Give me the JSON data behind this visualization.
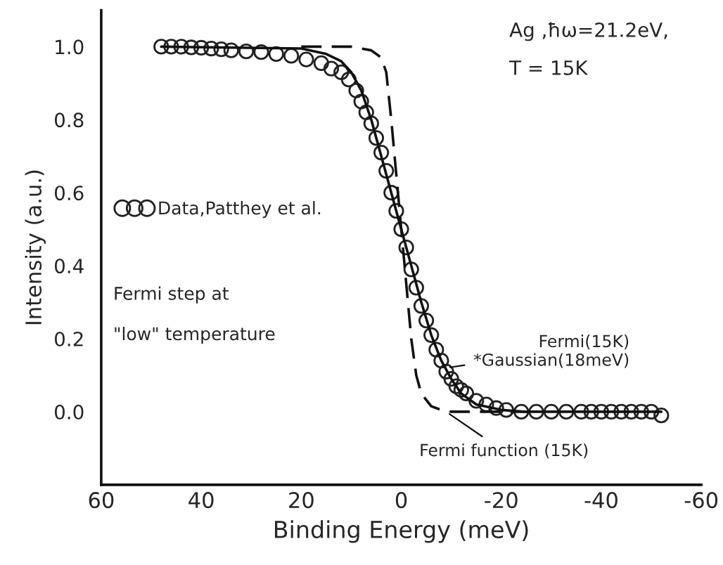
{
  "chart_data": {
    "type": "line",
    "xlabel": "Binding Energy (meV)",
    "ylabel": "Intensity (a.u.)",
    "xlim": [
      60,
      -60
    ],
    "xticks": [
      60,
      40,
      20,
      0,
      {
        "value": -20,
        "label": "-20"
      },
      {
        "value": -40,
        "label": "-40"
      },
      {
        "value": -60,
        "label": "-60"
      }
    ],
    "ylim": [
      -0.2,
      1.1
    ],
    "yticks": [
      {
        "value": 0.0,
        "label": "0.0"
      },
      0.2,
      0.4,
      0.6,
      0.8,
      {
        "value": 1.0,
        "label": "1.0"
      }
    ],
    "grid": false,
    "legend": "left",
    "series": [
      {
        "name": "Data,Patthey et al.",
        "type": "scatter",
        "marker": "circle",
        "color": "#222222",
        "x": [
          48,
          46,
          44,
          42,
          40,
          38,
          36,
          34,
          31,
          28,
          25,
          22,
          19,
          16,
          14,
          12,
          10.5,
          9,
          8,
          7,
          6,
          5,
          4,
          3,
          2,
          1,
          0,
          -1,
          -2,
          -3,
          -4,
          -5,
          -6,
          -7,
          -8,
          -9,
          -10,
          -11,
          -12,
          -13,
          -15,
          -17,
          -19,
          -21,
          -24,
          -27,
          -30,
          -33,
          -36,
          -38,
          -40,
          -42,
          -44,
          -46,
          -48,
          -50,
          -52
        ],
        "values": [
          1.0,
          1.0,
          1.0,
          0.998,
          0.997,
          0.995,
          0.993,
          0.99,
          0.987,
          0.985,
          0.98,
          0.975,
          0.965,
          0.955,
          0.94,
          0.93,
          0.91,
          0.88,
          0.85,
          0.82,
          0.79,
          0.75,
          0.71,
          0.66,
          0.6,
          0.55,
          0.5,
          0.45,
          0.39,
          0.34,
          0.29,
          0.25,
          0.21,
          0.17,
          0.14,
          0.11,
          0.09,
          0.07,
          0.06,
          0.05,
          0.03,
          0.02,
          0.01,
          0.005,
          0.0,
          0.0,
          0.0,
          0.0,
          0.0,
          0.0,
          0.0,
          0.0,
          0.0,
          0.0,
          0.0,
          0.0,
          -0.01
        ]
      },
      {
        "marker": "none",
        "line_style": "solid",
        "color": "#111111",
        "x": [
          48,
          20,
          15,
          12,
          10,
          8,
          6,
          4,
          2,
          0,
          -2,
          -4,
          -6,
          -8,
          -10,
          -12,
          -15,
          -20,
          -25,
          -52
        ],
        "values": [
          1.0,
          0.995,
          0.98,
          0.96,
          0.93,
          0.88,
          0.8,
          0.7,
          0.6,
          0.5,
          0.4,
          0.3,
          0.21,
          0.14,
          0.09,
          0.05,
          0.02,
          0.005,
          0.0,
          0.0
        ]
      },
      {
        "marker": "none",
        "line_style": "dashed",
        "color": "#111111",
        "x": [
          20,
          10,
          6,
          4,
          3,
          2,
          1,
          0,
          -1,
          -2,
          -3,
          -4,
          -6,
          -8,
          -10,
          -25
        ],
        "values": [
          1.0,
          1.0,
          0.99,
          0.97,
          0.93,
          0.8,
          0.65,
          0.5,
          0.35,
          0.2,
          0.1,
          0.05,
          0.015,
          0.005,
          0.0,
          0.0
        ]
      }
    ],
    "annotations": [
      "Ag ,ħω=21.2eV,",
      "T = 15K",
      "Fermi step at",
      "\"low\" temperature",
      {
        "text": "Fermi(15K)\n*Gaussian(18meV)",
        "x": -9,
        "y": 0.12
      },
      {
        "text": "Fermi function (15K)",
        "x": -9,
        "y": 0.0
      }
    ]
  }
}
